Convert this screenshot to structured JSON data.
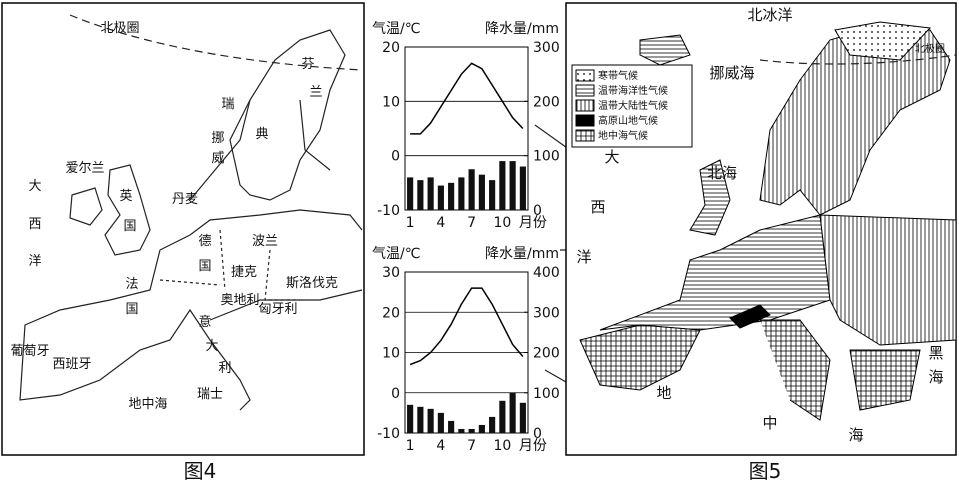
{
  "map4": {
    "caption": "图4",
    "labels": [
      "北极圈",
      "芬",
      "兰",
      "瑞",
      "典",
      "挪",
      "威",
      "爱尔兰",
      "英",
      "国",
      "丹麦",
      "大",
      "西",
      "洋",
      "德",
      "国",
      "波兰",
      "捷克",
      "斯洛伐克",
      "法",
      "国",
      "奥地利",
      "匈牙利",
      "意",
      "大",
      "利",
      "瑞士",
      "葡萄牙",
      "西班牙",
      "地中海"
    ]
  },
  "chart_data": [
    {
      "type": "climate",
      "y_label": "气温/℃",
      "y2_label": "降水量/mm",
      "x_unit": "月份",
      "categories": [
        "1",
        null,
        null,
        "4",
        null,
        null,
        "7",
        null,
        null,
        "10",
        null,
        null
      ],
      "ylim": [
        -10,
        20
      ],
      "yticks": [
        -10,
        0,
        10,
        20
      ],
      "y2lim": [
        0,
        300
      ],
      "y2ticks": [
        0,
        100,
        200,
        300
      ],
      "grid": true,
      "series": [
        {
          "type": "line",
          "color": "#000",
          "values": [
            4,
            4,
            6,
            9,
            12,
            15,
            17,
            16,
            13,
            10,
            7,
            5
          ]
        },
        {
          "type": "bar",
          "axis": "y2",
          "color": "#111",
          "values": [
            60,
            55,
            60,
            45,
            50,
            60,
            75,
            65,
            55,
            90,
            90,
            80
          ]
        }
      ]
    },
    {
      "type": "climate",
      "y_label": "气温/℃",
      "y2_label": "降水量/mm",
      "x_unit": "月份",
      "categories": [
        "1",
        null,
        null,
        "4",
        null,
        null,
        "7",
        null,
        null,
        "10",
        null,
        null
      ],
      "ylim": [
        -10,
        30
      ],
      "yticks": [
        -10,
        0,
        10,
        20,
        30
      ],
      "y2lim": [
        0,
        400
      ],
      "y2ticks": [
        0,
        100,
        200,
        300,
        400
      ],
      "grid": true,
      "series": [
        {
          "type": "line",
          "color": "#000",
          "values": [
            7,
            8,
            10,
            13,
            17,
            22,
            26,
            26,
            22,
            17,
            12,
            9
          ]
        },
        {
          "type": "bar",
          "axis": "y2",
          "color": "#111",
          "values": [
            70,
            65,
            60,
            50,
            30,
            10,
            10,
            20,
            40,
            80,
            100,
            75
          ]
        }
      ]
    }
  ],
  "map5": {
    "caption": "图5",
    "labels": [
      "北冰洋",
      "北极圈",
      "挪威海",
      "北海",
      "大",
      "西",
      "洋",
      "黑",
      "海",
      "地",
      "中",
      "海"
    ],
    "legend": [
      "寒带气候",
      "温带海洋性气候",
      "温带大陆性气候",
      "高原山地气候",
      "地中海气候"
    ]
  }
}
